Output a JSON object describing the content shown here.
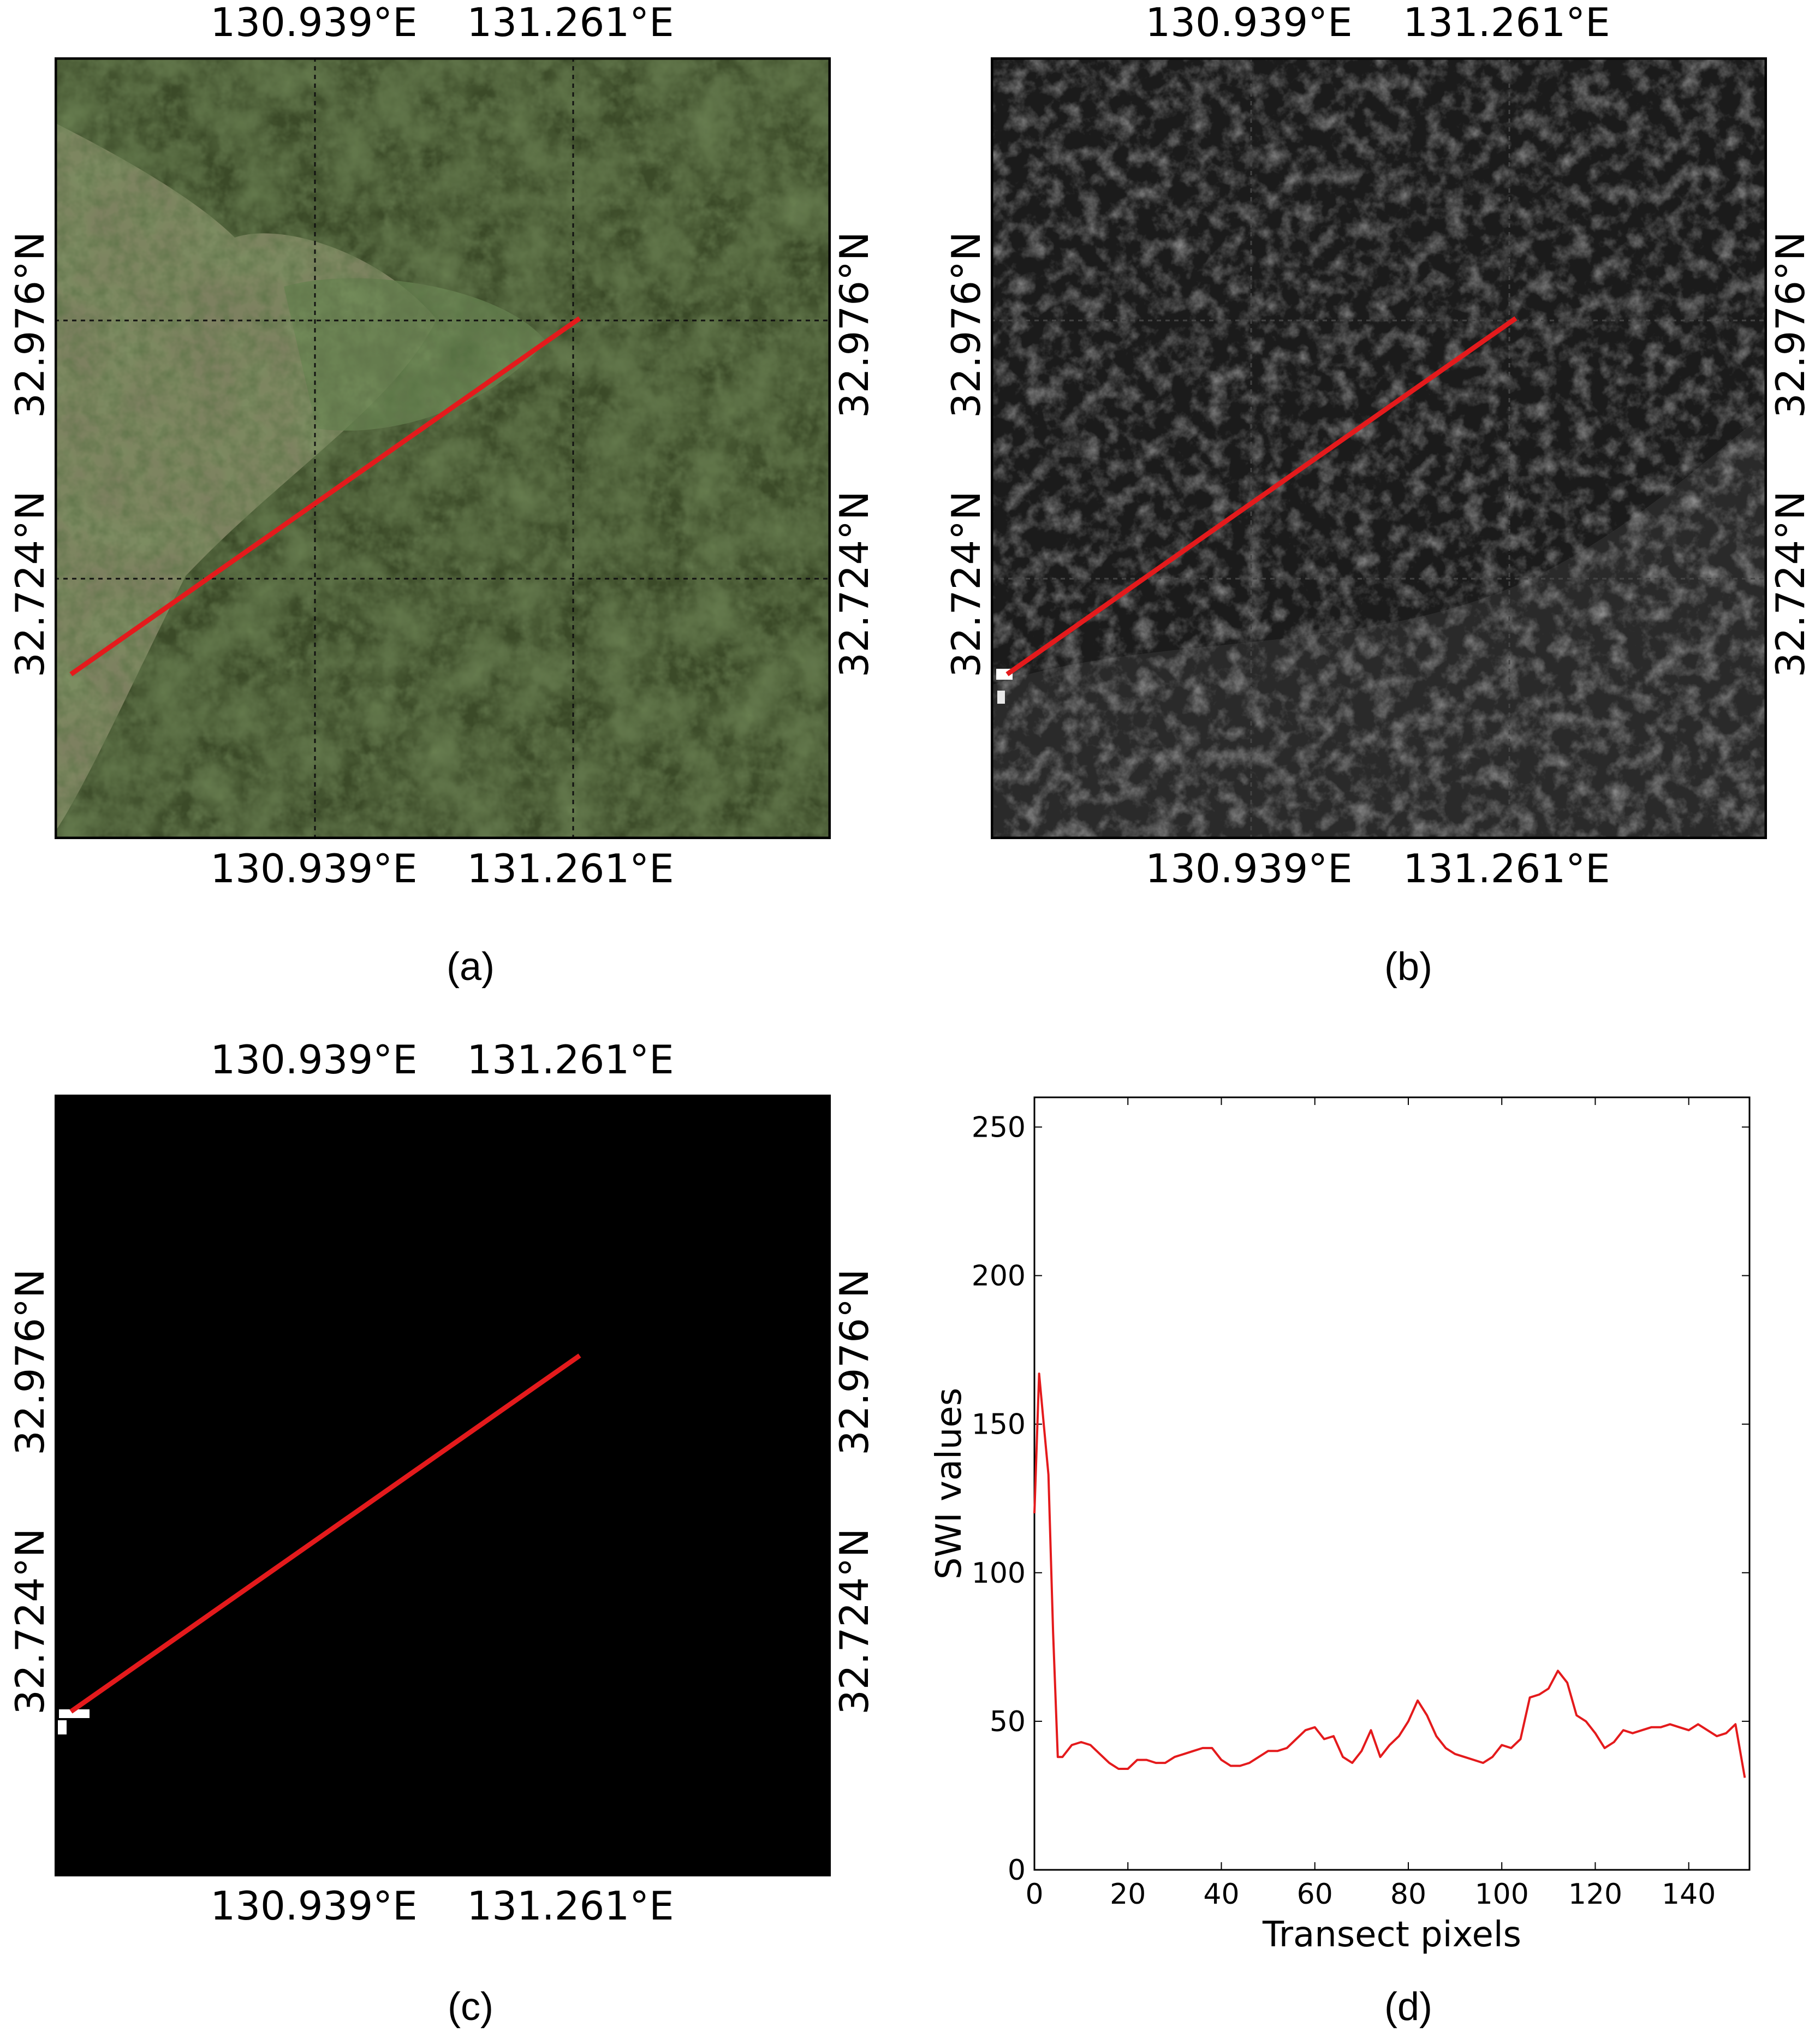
{
  "panels": {
    "a": {
      "caption": "(a)",
      "lon_ticks": [
        "130.939°E",
        "131.261°E"
      ],
      "lat_ticks": [
        "32.976°N",
        "32.724°N"
      ],
      "background": "#3f4a2a",
      "line_color": "#e41a1c"
    },
    "b": {
      "caption": "(b)",
      "lon_ticks": [
        "130.939°E",
        "131.261°E"
      ],
      "lat_ticks": [
        "32.976°N",
        "32.724°N"
      ],
      "background": "#1e1e1e",
      "line_color": "#e41a1c"
    },
    "c": {
      "caption": "(c)",
      "lon_ticks": [
        "130.939°E",
        "131.261°E"
      ],
      "lat_ticks": [
        "32.976°N",
        "32.724°N"
      ],
      "background": "#000000",
      "line_color": "#e41a1c"
    },
    "d": {
      "caption": "(d)"
    }
  },
  "chart_data": {
    "type": "line",
    "xlabel": "Transect pixels",
    "ylabel": "SWI values",
    "xlim": [
      0,
      153
    ],
    "ylim": [
      0,
      260
    ],
    "xticks": [
      0,
      20,
      40,
      60,
      80,
      100,
      120,
      140
    ],
    "yticks": [
      0,
      50,
      100,
      150,
      200,
      250
    ],
    "color": "#e41a1c",
    "x": [
      0,
      1,
      2,
      3,
      4,
      5,
      6,
      8,
      10,
      12,
      14,
      16,
      18,
      20,
      22,
      24,
      26,
      28,
      30,
      32,
      34,
      36,
      38,
      40,
      42,
      44,
      46,
      48,
      50,
      52,
      54,
      56,
      58,
      60,
      62,
      64,
      66,
      68,
      70,
      72,
      74,
      76,
      78,
      80,
      82,
      84,
      86,
      88,
      90,
      92,
      94,
      96,
      98,
      100,
      102,
      104,
      106,
      108,
      110,
      112,
      114,
      116,
      118,
      120,
      122,
      124,
      126,
      128,
      130,
      132,
      134,
      136,
      138,
      140,
      142,
      144,
      146,
      148,
      150,
      152
    ],
    "y": [
      120,
      167,
      150,
      133,
      80,
      38,
      38,
      42,
      43,
      42,
      39,
      36,
      34,
      34,
      37,
      37,
      36,
      36,
      38,
      39,
      40,
      41,
      41,
      37,
      35,
      35,
      36,
      38,
      40,
      40,
      41,
      44,
      47,
      48,
      44,
      45,
      38,
      36,
      40,
      47,
      38,
      42,
      45,
      50,
      57,
      52,
      45,
      41,
      39,
      38,
      37,
      36,
      38,
      42,
      41,
      44,
      58,
      59,
      61,
      67,
      63,
      52,
      50,
      46,
      41,
      43,
      47,
      46,
      47,
      48,
      48,
      49,
      48,
      47,
      49,
      47,
      45,
      46,
      49,
      31
    ]
  }
}
